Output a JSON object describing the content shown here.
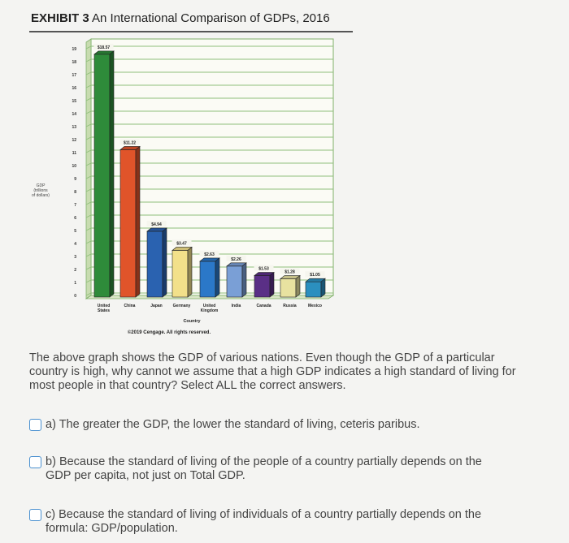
{
  "exhibit": {
    "label": "EXHIBIT 3",
    "title": "An International Comparison of GDPs, 2016"
  },
  "chart_data": {
    "type": "bar",
    "title": "",
    "ylabel": "GDP (trillions of dollars)",
    "xlabel": "Country",
    "ylim": [
      0,
      19.5
    ],
    "yticks": [
      0,
      1,
      2,
      3,
      4,
      5,
      6,
      7,
      8,
      9,
      10,
      11,
      12,
      13,
      14,
      15,
      16,
      17,
      18,
      19
    ],
    "categories": [
      "United States",
      "China",
      "Japan",
      "Germany",
      "United Kingdom",
      "India",
      "Canada",
      "Russia",
      "Mexico"
    ],
    "values": [
      18.57,
      11.22,
      4.94,
      3.47,
      2.63,
      2.26,
      1.53,
      1.28,
      1.05
    ],
    "value_labels": [
      "$18.57",
      "$11.22",
      "$4.94",
      "$3.47",
      "$2.63",
      "$2.26",
      "$1.53",
      "$1.28",
      "$1.05"
    ],
    "colors": [
      "#2e8b3a",
      "#e0542a",
      "#2a62b0",
      "#f2e08a",
      "#2b78c8",
      "#7a9fd6",
      "#5a2f86",
      "#e8e2a0",
      "#2b8fbf"
    ],
    "grid": true,
    "style": "3d"
  },
  "copyright": "©2019 Cengage. All rights reserved.",
  "question": "The above graph shows the GDP of various nations. Even though the GDP of a particular country is high, why cannot we assume that a high GDP indicates a high standard of living for most people in that country? Select ALL the correct answers.",
  "options": [
    {
      "letter": "a)",
      "text": "The greater the GDP, the lower the standard of living, ceteris paribus."
    },
    {
      "letter": "b)",
      "text": "Because the standard of living of the people of a country partially depends on the GDP per capita, not just on Total GDP."
    },
    {
      "letter": "c)",
      "text": "Because the standard of living of individuals of a country partially depends on the formula: GDP/population."
    }
  ]
}
